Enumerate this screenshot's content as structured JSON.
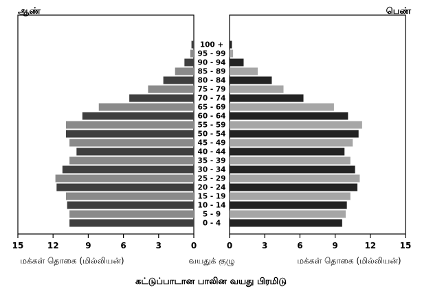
{
  "chart_data": {
    "type": "bar",
    "title": "கட்டுப்பாடான பாலின வயது பிரமிடு",
    "left_label": "ஆண்",
    "right_label": "பெண்",
    "left_axis_label": "மக்கள் தொகை (மில்லியன்)",
    "center_axis_label": "வயதுக் குழு",
    "right_axis_label": "மக்கள் தொகை (மில்லியன்)",
    "xlim": [
      0,
      15
    ],
    "ticks": [
      15,
      12,
      9,
      6,
      3,
      0
    ],
    "categories": [
      "100 +",
      "95 - 99",
      "90 - 94",
      "85 - 89",
      "80 - 84",
      "75 - 79",
      "70 - 74",
      "65 - 69",
      "60 - 64",
      "55 - 59",
      "50 - 54",
      "45 - 49",
      "40 - 44",
      "35 - 39",
      "30 - 34",
      "25 - 29",
      "20 - 24",
      "15 - 19",
      "10 - 14",
      "5 - 9",
      "0 - 4"
    ],
    "series": [
      {
        "name": "ஆண்",
        "values": [
          0.2,
          0.3,
          0.8,
          1.6,
          2.6,
          3.9,
          5.5,
          8.1,
          9.5,
          10.9,
          10.9,
          10.6,
          10.0,
          10.6,
          11.2,
          11.8,
          11.7,
          10.9,
          10.8,
          10.6,
          10.6
        ]
      },
      {
        "name": "பெண்",
        "values": [
          0.2,
          0.3,
          1.2,
          2.4,
          3.6,
          4.6,
          6.3,
          8.9,
          10.1,
          11.3,
          11.0,
          10.5,
          9.8,
          10.3,
          10.7,
          11.1,
          10.9,
          10.3,
          10.0,
          9.9,
          9.6
        ]
      }
    ],
    "colors": [
      "#3f3f3f",
      "#8a8a8a",
      "#232323",
      "#a6a6a6"
    ],
    "grid": false
  }
}
